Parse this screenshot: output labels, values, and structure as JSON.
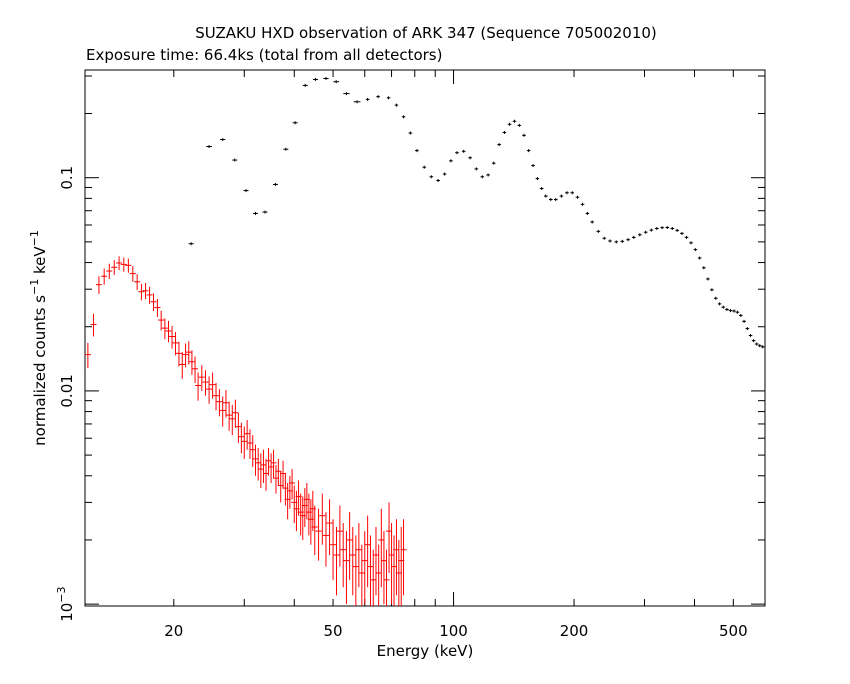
{
  "chart_data": {
    "type": "scatter",
    "title": "SUZAKU HXD observation of ARK 347 (Sequence 705002010)",
    "subtitle": "Exposure time: 66.4ks (total from all detectors)",
    "xlabel": "Energy (keV)",
    "ylabel_base": "normalized counts s",
    "ylabel_exp1": "−1",
    "ylabel_mid": " keV",
    "ylabel_exp2": "−1",
    "xscale": "log",
    "yscale": "log",
    "xlim": [
      12,
      600
    ],
    "ylim": [
      0.00098,
      0.32
    ],
    "grid": false,
    "legend": "none",
    "x_ticks": [
      {
        "value": 20,
        "label": "20"
      },
      {
        "value": 50,
        "label": "50"
      },
      {
        "value": 100,
        "label": "100"
      },
      {
        "value": 200,
        "label": "200"
      },
      {
        "value": 500,
        "label": "500"
      }
    ],
    "y_ticks": [
      {
        "value": 0.1,
        "label": "0.1"
      },
      {
        "value": 0.01,
        "label": "0.01"
      }
    ],
    "y_tick_exp": {
      "value": 0.001,
      "base": "10",
      "exp": "−3"
    },
    "series": [
      {
        "color": "#000000",
        "points": [
          [
            22.1,
            0.049,
            1.0
          ],
          [
            24.5,
            0.14,
            1.2
          ],
          [
            26.5,
            0.151,
            1.1
          ],
          [
            28.4,
            0.121,
            0.9
          ],
          [
            30.3,
            0.087,
            0.9
          ],
          [
            32.0,
            0.068,
            0.9
          ],
          [
            33.8,
            0.069,
            0.9
          ],
          [
            35.9,
            0.093,
            0.9
          ],
          [
            38.1,
            0.136,
            0.9
          ],
          [
            40.2,
            0.181,
            0.9
          ],
          [
            42.6,
            0.271,
            1.0
          ],
          [
            45.2,
            0.289,
            1.0
          ],
          [
            48.0,
            0.292,
            1.1
          ],
          [
            50.9,
            0.282,
            1.2
          ],
          [
            54.0,
            0.248,
            1.3
          ],
          [
            57.4,
            0.227,
            1.4
          ],
          [
            61.0,
            0.233,
            1.5
          ],
          [
            64.8,
            0.24,
            1.6
          ],
          [
            68.8,
            0.237,
            1.7
          ],
          [
            72.0,
            0.219,
            1.7
          ],
          [
            75.0,
            0.193,
            1.7
          ],
          [
            78.0,
            0.162,
            1.7
          ],
          [
            81.0,
            0.134,
            1.8
          ],
          [
            84.5,
            0.112,
            1.8
          ],
          [
            88.0,
            0.101,
            1.9
          ],
          [
            91.5,
            0.097,
            1.9
          ],
          [
            95.0,
            0.104,
            1.9
          ],
          [
            98.5,
            0.12,
            2.0
          ],
          [
            102.0,
            0.131,
            2.0
          ],
          [
            106.0,
            0.133,
            2.0
          ],
          [
            110.0,
            0.124,
            2.0
          ],
          [
            114.0,
            0.11,
            2.0
          ],
          [
            118.0,
            0.101,
            2.0
          ],
          [
            122.0,
            0.103,
            2.0
          ],
          [
            126.0,
            0.117,
            2.0
          ],
          [
            130.0,
            0.143,
            2.0
          ],
          [
            134.0,
            0.163,
            2.0
          ],
          [
            138.0,
            0.178,
            2.0
          ],
          [
            142.0,
            0.184,
            2.0
          ],
          [
            146.0,
            0.176,
            2.0
          ],
          [
            150.0,
            0.158,
            2.0
          ],
          [
            154.0,
            0.134,
            2.0
          ],
          [
            158.0,
            0.114,
            2.0
          ],
          [
            162.0,
            0.099,
            2.0
          ],
          [
            166.0,
            0.089,
            2.0
          ],
          [
            170.0,
            0.082,
            2.0
          ],
          [
            175.0,
            0.079,
            2.0
          ],
          [
            180.0,
            0.079,
            2.0
          ],
          [
            186.0,
            0.082,
            2.0
          ],
          [
            192.0,
            0.085,
            2.0
          ],
          [
            198.0,
            0.085,
            2.0
          ],
          [
            204.0,
            0.081,
            2.0
          ],
          [
            210.0,
            0.075,
            2.0
          ],
          [
            216.0,
            0.068,
            2.0
          ],
          [
            222.0,
            0.062,
            2.0
          ],
          [
            230.0,
            0.056,
            2.0
          ],
          [
            238.0,
            0.052,
            2.0
          ],
          [
            246.0,
            0.0505,
            2.0
          ],
          [
            255.0,
            0.05,
            2.0
          ],
          [
            264.0,
            0.0503,
            2.0
          ],
          [
            273.0,
            0.0512,
            2.0
          ],
          [
            282.0,
            0.0525,
            2.0
          ],
          [
            292.0,
            0.054,
            2.0
          ],
          [
            302.0,
            0.0555,
            2.0
          ],
          [
            312.0,
            0.0568,
            2.0
          ],
          [
            322.0,
            0.0578,
            2.0
          ],
          [
            332.0,
            0.0583,
            2.0
          ],
          [
            342.0,
            0.0584,
            2.0
          ],
          [
            352.0,
            0.0578,
            2.0
          ],
          [
            362.0,
            0.0566,
            2.0
          ],
          [
            372.0,
            0.0548,
            2.0
          ],
          [
            382.0,
            0.0525,
            2.0
          ],
          [
            392.0,
            0.0495,
            2.0
          ],
          [
            402.0,
            0.046,
            2.0
          ],
          [
            412.0,
            0.042,
            2.0
          ],
          [
            422.0,
            0.0378,
            2.0
          ],
          [
            432.0,
            0.0335,
            2.0
          ],
          [
            442.0,
            0.0298,
            2.0
          ],
          [
            452.0,
            0.0272,
            2.0
          ],
          [
            462.0,
            0.0256,
            2.0
          ],
          [
            472.0,
            0.0247,
            2.0
          ],
          [
            482.0,
            0.0241,
            2.0
          ],
          [
            492.0,
            0.0238,
            2.0
          ],
          [
            502.0,
            0.0237,
            2.0
          ],
          [
            512.0,
            0.0234,
            2.0
          ],
          [
            522.0,
            0.0226,
            2.0
          ],
          [
            532.0,
            0.0212,
            2.0
          ],
          [
            542.0,
            0.0196,
            2.0
          ],
          [
            552.0,
            0.0182,
            2.0
          ],
          [
            562.0,
            0.0172,
            2.0
          ],
          [
            572.0,
            0.0166,
            2.0
          ],
          [
            582.0,
            0.0163,
            2.0
          ],
          [
            592.0,
            0.0161,
            2.0
          ]
        ]
      },
      {
        "color": "#ff0000",
        "points": [
          [
            12.2,
            0.0148,
            0.002
          ],
          [
            12.6,
            0.0205,
            0.0025
          ],
          [
            13.0,
            0.0315,
            0.003
          ],
          [
            13.4,
            0.0345,
            0.003
          ],
          [
            13.8,
            0.0365,
            0.003
          ],
          [
            14.2,
            0.038,
            0.003
          ],
          [
            14.6,
            0.0398,
            0.003
          ],
          [
            15.0,
            0.0392,
            0.003
          ],
          [
            15.4,
            0.0388,
            0.003
          ],
          [
            15.8,
            0.0355,
            0.003
          ],
          [
            16.2,
            0.0325,
            0.0028
          ],
          [
            16.6,
            0.0292,
            0.0026
          ],
          [
            17.0,
            0.0295,
            0.0026
          ],
          [
            17.4,
            0.0282,
            0.0026
          ],
          [
            17.8,
            0.0262,
            0.0025
          ],
          [
            18.2,
            0.0246,
            0.0024
          ],
          [
            18.6,
            0.0215,
            0.0023
          ],
          [
            19.0,
            0.0197,
            0.0022
          ],
          [
            19.4,
            0.0191,
            0.0022
          ],
          [
            19.8,
            0.018,
            0.0022
          ],
          [
            20.2,
            0.0168,
            0.0021
          ],
          [
            20.6,
            0.015,
            0.002
          ],
          [
            21.0,
            0.0133,
            0.0019
          ],
          [
            21.4,
            0.0148,
            0.0019
          ],
          [
            21.8,
            0.0152,
            0.0019
          ],
          [
            22.2,
            0.0137,
            0.0018
          ],
          [
            22.6,
            0.0127,
            0.0018
          ],
          [
            23.0,
            0.0106,
            0.0016
          ],
          [
            23.5,
            0.0116,
            0.0016
          ],
          [
            24.0,
            0.011,
            0.0015
          ],
          [
            24.5,
            0.0102,
            0.0015
          ],
          [
            25.0,
            0.0107,
            0.0015
          ],
          [
            25.5,
            0.0095,
            0.0014
          ],
          [
            26.0,
            0.0089,
            0.0013
          ],
          [
            26.5,
            0.0081,
            0.0013
          ],
          [
            27.0,
            0.0088,
            0.0013
          ],
          [
            27.5,
            0.0077,
            0.0012
          ],
          [
            28.0,
            0.0074,
            0.0012
          ],
          [
            28.5,
            0.0079,
            0.0012
          ],
          [
            29.0,
            0.0068,
            0.0011
          ],
          [
            29.5,
            0.0061,
            0.001
          ],
          [
            30.0,
            0.0058,
            0.001
          ],
          [
            30.5,
            0.0063,
            0.001
          ],
          [
            31.0,
            0.0057,
            0.0009
          ],
          [
            31.5,
            0.0053,
            0.0009
          ],
          [
            32.0,
            0.0048,
            0.0008
          ],
          [
            32.5,
            0.0046,
            0.0008
          ],
          [
            33.0,
            0.0043,
            0.0008
          ],
          [
            33.5,
            0.0045,
            0.0008
          ],
          [
            34.0,
            0.0041,
            0.0007
          ],
          [
            34.5,
            0.0047,
            0.0007
          ],
          [
            35.0,
            0.0044,
            0.0007
          ],
          [
            35.5,
            0.0046,
            0.0007
          ],
          [
            36.0,
            0.0039,
            0.0006
          ],
          [
            36.5,
            0.0042,
            0.0006
          ],
          [
            37.0,
            0.0036,
            0.0006
          ],
          [
            37.5,
            0.0041,
            0.0006
          ],
          [
            38.0,
            0.0035,
            0.0006
          ],
          [
            38.5,
            0.0031,
            0.0006
          ],
          [
            39.0,
            0.0034,
            0.0006
          ],
          [
            39.5,
            0.0037,
            0.0006
          ],
          [
            40.0,
            0.003,
            0.0006
          ],
          [
            40.5,
            0.0028,
            0.0006
          ],
          [
            41.0,
            0.0032,
            0.0006
          ],
          [
            41.5,
            0.0027,
            0.0006
          ],
          [
            42.0,
            0.0026,
            0.0006
          ],
          [
            42.5,
            0.0029,
            0.0006
          ],
          [
            43.0,
            0.0031,
            0.0006
          ],
          [
            43.5,
            0.0027,
            0.0006
          ],
          [
            44.0,
            0.0025,
            0.0006
          ],
          [
            44.5,
            0.0028,
            0.0006
          ],
          [
            45.0,
            0.0023,
            0.0006
          ],
          [
            46.0,
            0.0022,
            0.0006
          ],
          [
            47.0,
            0.0026,
            0.0007
          ],
          [
            48.0,
            0.0021,
            0.0006
          ],
          [
            49.0,
            0.0024,
            0.0007
          ],
          [
            50.0,
            0.0019,
            0.0006
          ],
          [
            51.0,
            0.0017,
            0.0006
          ],
          [
            52.0,
            0.0022,
            0.0007
          ],
          [
            53.0,
            0.0018,
            0.0006
          ],
          [
            54.0,
            0.0016,
            0.0006
          ],
          [
            55.0,
            0.002,
            0.0007
          ],
          [
            56.0,
            0.0017,
            0.0006
          ],
          [
            57.0,
            0.0015,
            0.0006
          ],
          [
            58.0,
            0.0018,
            0.0006
          ],
          [
            59.0,
            0.0014,
            0.0005
          ],
          [
            60.0,
            0.0016,
            0.0006
          ],
          [
            61.0,
            0.0019,
            0.0007
          ],
          [
            62.0,
            0.0015,
            0.0006
          ],
          [
            63.0,
            0.0013,
            0.0005
          ],
          [
            64.0,
            0.0017,
            0.0006
          ],
          [
            65.0,
            0.0014,
            0.0005
          ],
          [
            66.0,
            0.002,
            0.0008
          ],
          [
            67.0,
            0.0016,
            0.0006
          ],
          [
            68.0,
            0.0013,
            0.0005
          ],
          [
            69.0,
            0.0022,
            0.0008
          ],
          [
            70.0,
            0.0017,
            0.0007
          ],
          [
            71.0,
            0.0015,
            0.0006
          ],
          [
            72.0,
            0.0018,
            0.0007
          ],
          [
            73.0,
            0.0014,
            0.0006
          ],
          [
            74.0,
            0.0016,
            0.0007
          ],
          [
            75.0,
            0.0018,
            0.0007
          ]
        ]
      }
    ]
  }
}
